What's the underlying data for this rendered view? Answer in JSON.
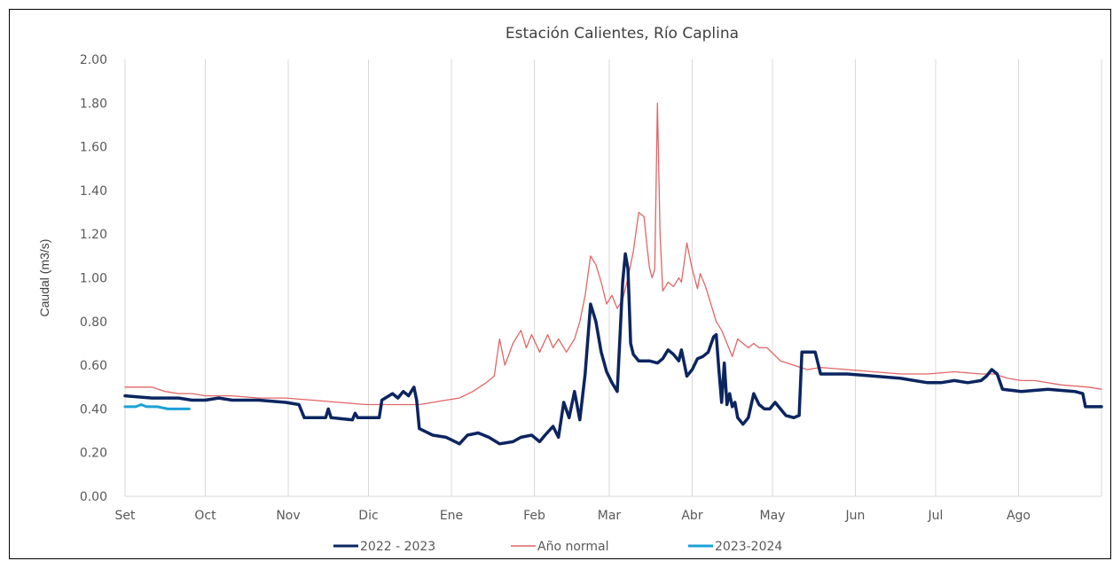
{
  "chart_data": {
    "type": "line",
    "title": "Estación Calientes,  Río Caplina",
    "xlabel": "",
    "ylabel": "Caudal (m3/s)",
    "ylim": [
      0,
      2.0
    ],
    "yticks": [
      "0.00",
      "0.20",
      "0.40",
      "0.60",
      "0.80",
      "1.00",
      "1.20",
      "1.40",
      "1.60",
      "1.80",
      "2.00"
    ],
    "xlim": [
      0,
      365
    ],
    "x_ticks": [
      {
        "label": "Set",
        "day": 0
      },
      {
        "label": "Oct",
        "day": 30
      },
      {
        "label": "Nov",
        "day": 61
      },
      {
        "label": "Dic",
        "day": 91
      },
      {
        "label": "Ene",
        "day": 122
      },
      {
        "label": "Feb",
        "day": 153
      },
      {
        "label": "Mar",
        "day": 181
      },
      {
        "label": "Abr",
        "day": 212
      },
      {
        "label": "May",
        "day": 242
      },
      {
        "label": "Jun",
        "day": 273
      },
      {
        "label": "Jul",
        "day": 303
      },
      {
        "label": "Ago",
        "day": 334
      }
    ],
    "grid": "vertical",
    "legend_position": "bottom",
    "series": [
      {
        "name": "2022 - 2023",
        "color": "#0b2560",
        "points": [
          [
            0,
            0.46
          ],
          [
            10,
            0.45
          ],
          [
            20,
            0.45
          ],
          [
            25,
            0.44
          ],
          [
            30,
            0.44
          ],
          [
            35,
            0.45
          ],
          [
            40,
            0.44
          ],
          [
            50,
            0.44
          ],
          [
            60,
            0.43
          ],
          [
            65,
            0.42
          ],
          [
            67,
            0.36
          ],
          [
            75,
            0.36
          ],
          [
            76,
            0.4
          ],
          [
            77,
            0.36
          ],
          [
            85,
            0.35
          ],
          [
            86,
            0.38
          ],
          [
            87,
            0.36
          ],
          [
            95,
            0.36
          ],
          [
            96,
            0.44
          ],
          [
            100,
            0.47
          ],
          [
            102,
            0.45
          ],
          [
            104,
            0.48
          ],
          [
            106,
            0.46
          ],
          [
            108,
            0.5
          ],
          [
            109,
            0.44
          ],
          [
            110,
            0.31
          ],
          [
            115,
            0.28
          ],
          [
            120,
            0.27
          ],
          [
            125,
            0.24
          ],
          [
            128,
            0.28
          ],
          [
            132,
            0.29
          ],
          [
            136,
            0.27
          ],
          [
            140,
            0.24
          ],
          [
            145,
            0.25
          ],
          [
            148,
            0.27
          ],
          [
            152,
            0.28
          ],
          [
            155,
            0.25
          ],
          [
            157,
            0.28
          ],
          [
            160,
            0.32
          ],
          [
            162,
            0.27
          ],
          [
            164,
            0.43
          ],
          [
            166,
            0.36
          ],
          [
            168,
            0.48
          ],
          [
            170,
            0.35
          ],
          [
            172,
            0.56
          ],
          [
            174,
            0.88
          ],
          [
            176,
            0.8
          ],
          [
            178,
            0.66
          ],
          [
            180,
            0.57
          ],
          [
            182,
            0.52
          ],
          [
            184,
            0.48
          ],
          [
            186,
            0.98
          ],
          [
            187,
            1.11
          ],
          [
            188,
            1.04
          ],
          [
            189,
            0.7
          ],
          [
            190,
            0.65
          ],
          [
            192,
            0.62
          ],
          [
            196,
            0.62
          ],
          [
            199,
            0.61
          ],
          [
            201,
            0.63
          ],
          [
            203,
            0.67
          ],
          [
            205,
            0.65
          ],
          [
            207,
            0.62
          ],
          [
            208,
            0.67
          ],
          [
            210,
            0.55
          ],
          [
            212,
            0.58
          ],
          [
            214,
            0.63
          ],
          [
            216,
            0.64
          ],
          [
            218,
            0.66
          ],
          [
            220,
            0.73
          ],
          [
            221,
            0.74
          ],
          [
            222,
            0.58
          ],
          [
            223,
            0.43
          ],
          [
            224,
            0.61
          ],
          [
            225,
            0.42
          ],
          [
            226,
            0.47
          ],
          [
            227,
            0.41
          ],
          [
            228,
            0.43
          ],
          [
            229,
            0.36
          ],
          [
            231,
            0.33
          ],
          [
            233,
            0.36
          ],
          [
            235,
            0.47
          ],
          [
            237,
            0.42
          ],
          [
            239,
            0.4
          ],
          [
            241,
            0.4
          ],
          [
            243,
            0.43
          ],
          [
            245,
            0.4
          ],
          [
            247,
            0.37
          ],
          [
            250,
            0.36
          ],
          [
            252,
            0.37
          ],
          [
            253,
            0.66
          ],
          [
            258,
            0.66
          ],
          [
            260,
            0.56
          ],
          [
            270,
            0.56
          ],
          [
            280,
            0.55
          ],
          [
            290,
            0.54
          ],
          [
            295,
            0.53
          ],
          [
            300,
            0.52
          ],
          [
            305,
            0.52
          ],
          [
            310,
            0.53
          ],
          [
            315,
            0.52
          ],
          [
            320,
            0.53
          ],
          [
            322,
            0.55
          ],
          [
            324,
            0.58
          ],
          [
            326,
            0.56
          ],
          [
            328,
            0.49
          ],
          [
            335,
            0.48
          ],
          [
            345,
            0.49
          ],
          [
            355,
            0.48
          ],
          [
            358,
            0.47
          ],
          [
            359,
            0.41
          ],
          [
            365,
            0.41
          ]
        ]
      },
      {
        "name": "Año normal",
        "color": "#e06666",
        "points": [
          [
            0,
            0.5
          ],
          [
            5,
            0.5
          ],
          [
            10,
            0.5
          ],
          [
            15,
            0.48
          ],
          [
            20,
            0.47
          ],
          [
            25,
            0.47
          ],
          [
            30,
            0.46
          ],
          [
            40,
            0.46
          ],
          [
            50,
            0.45
          ],
          [
            60,
            0.45
          ],
          [
            70,
            0.44
          ],
          [
            80,
            0.43
          ],
          [
            90,
            0.42
          ],
          [
            100,
            0.42
          ],
          [
            110,
            0.42
          ],
          [
            115,
            0.43
          ],
          [
            120,
            0.44
          ],
          [
            125,
            0.45
          ],
          [
            130,
            0.48
          ],
          [
            135,
            0.52
          ],
          [
            138,
            0.55
          ],
          [
            140,
            0.72
          ],
          [
            142,
            0.6
          ],
          [
            145,
            0.7
          ],
          [
            148,
            0.76
          ],
          [
            150,
            0.68
          ],
          [
            152,
            0.74
          ],
          [
            155,
            0.66
          ],
          [
            158,
            0.74
          ],
          [
            160,
            0.68
          ],
          [
            162,
            0.72
          ],
          [
            165,
            0.66
          ],
          [
            168,
            0.72
          ],
          [
            170,
            0.8
          ],
          [
            172,
            0.92
          ],
          [
            174,
            1.1
          ],
          [
            176,
            1.06
          ],
          [
            178,
            0.98
          ],
          [
            180,
            0.88
          ],
          [
            182,
            0.92
          ],
          [
            184,
            0.86
          ],
          [
            186,
            0.9
          ],
          [
            188,
            1.0
          ],
          [
            190,
            1.12
          ],
          [
            192,
            1.3
          ],
          [
            194,
            1.28
          ],
          [
            195,
            1.16
          ],
          [
            196,
            1.05
          ],
          [
            197,
            1.0
          ],
          [
            198,
            1.04
          ],
          [
            199,
            1.8
          ],
          [
            200,
            1.2
          ],
          [
            201,
            0.94
          ],
          [
            203,
            0.98
          ],
          [
            205,
            0.96
          ],
          [
            207,
            1.0
          ],
          [
            208,
            0.98
          ],
          [
            210,
            1.16
          ],
          [
            212,
            1.04
          ],
          [
            214,
            0.95
          ],
          [
            215,
            1.02
          ],
          [
            217,
            0.96
          ],
          [
            219,
            0.88
          ],
          [
            221,
            0.8
          ],
          [
            223,
            0.76
          ],
          [
            225,
            0.7
          ],
          [
            227,
            0.64
          ],
          [
            229,
            0.72
          ],
          [
            231,
            0.7
          ],
          [
            233,
            0.68
          ],
          [
            235,
            0.7
          ],
          [
            237,
            0.68
          ],
          [
            240,
            0.68
          ],
          [
            245,
            0.62
          ],
          [
            250,
            0.6
          ],
          [
            255,
            0.58
          ],
          [
            260,
            0.59
          ],
          [
            270,
            0.58
          ],
          [
            280,
            0.57
          ],
          [
            290,
            0.56
          ],
          [
            300,
            0.56
          ],
          [
            310,
            0.57
          ],
          [
            320,
            0.56
          ],
          [
            325,
            0.56
          ],
          [
            330,
            0.54
          ],
          [
            335,
            0.53
          ],
          [
            340,
            0.53
          ],
          [
            350,
            0.51
          ],
          [
            360,
            0.5
          ],
          [
            365,
            0.49
          ]
        ]
      },
      {
        "name": "2023-2024",
        "color": "#1ba1d8",
        "points": [
          [
            0,
            0.41
          ],
          [
            4,
            0.41
          ],
          [
            6,
            0.42
          ],
          [
            8,
            0.41
          ],
          [
            12,
            0.41
          ],
          [
            16,
            0.4
          ],
          [
            20,
            0.4
          ],
          [
            24,
            0.4
          ]
        ]
      }
    ]
  }
}
